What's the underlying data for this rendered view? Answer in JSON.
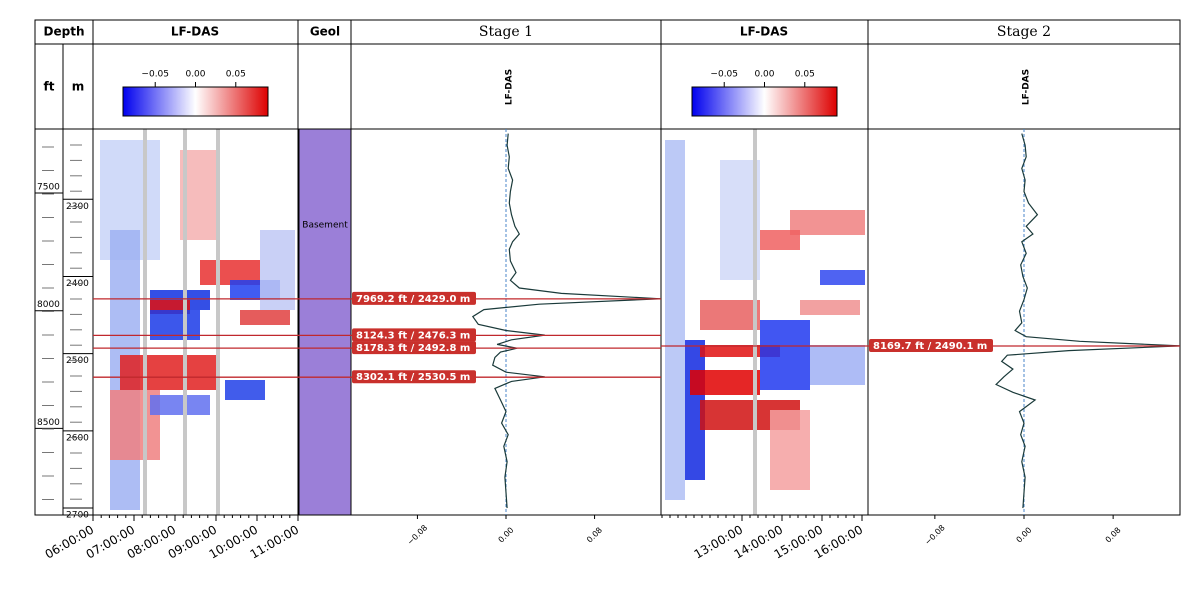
{
  "header": {
    "depth": "Depth",
    "ft": "ft",
    "m": "m",
    "lfdas1": "LF-DAS",
    "geol": "Geol",
    "stage1": "Stage 1",
    "lfdas2": "LF-DAS",
    "stage2": "Stage 2"
  },
  "depth_axes": {
    "ft_lim": [
      7228,
      8868
    ],
    "ft_ticks": [
      7500,
      8000,
      8500
    ],
    "m_lim": [
      2209,
      2709
    ],
    "m_ticks": [
      2300,
      2400,
      2500,
      2600,
      2700
    ]
  },
  "colorbar": {
    "lim": [
      -0.09,
      0.09
    ],
    "ticks": [
      {
        "value": -0.05,
        "label": "−0.05"
      },
      {
        "value": 0,
        "label": "0.00"
      },
      0.05
    ]
  },
  "geol": {
    "label": "Basement"
  },
  "time1": {
    "ticks": [
      "06:00:00",
      "07:00:00",
      "08:00:00",
      "09:00:00",
      "10:00:00",
      "11:00:00"
    ]
  },
  "time2": {
    "ticks": [
      "13:00:00",
      "14:00:00",
      "15:00:00",
      "16:00:00"
    ]
  },
  "stage1": {
    "trace_label": "LF-DAS",
    "xlim": [
      -0.14,
      0.14
    ],
    "xticks": [
      {
        "value": -0.08,
        "label": "−0.08"
      },
      {
        "value": 0,
        "label": "0.00"
      },
      {
        "value": 0.08,
        "label": "0.08"
      }
    ],
    "picks": [
      {
        "label": "7969.2 ft / 2429.0 m",
        "depth_m": 2429.0
      },
      {
        "label": "8124.3 ft / 2476.3 m",
        "depth_m": 2476.3
      },
      {
        "label": "8178.3 ft / 2492.8 m",
        "depth_m": 2492.8
      },
      {
        "label": "8302.1 ft / 2530.5 m",
        "depth_m": 2530.5
      }
    ],
    "trace": {
      "depth_m": [
        2215,
        2230,
        2245,
        2260,
        2275,
        2290,
        2305,
        2320,
        2335,
        2345,
        2355,
        2365,
        2380,
        2395,
        2405,
        2415,
        2422,
        2429,
        2436,
        2443,
        2452,
        2462,
        2470,
        2476,
        2482,
        2488,
        2493,
        2498,
        2505,
        2515,
        2524,
        2530,
        2536,
        2545,
        2560,
        2575,
        2590,
        2605,
        2620,
        2640,
        2660,
        2680,
        2700
      ],
      "values": [
        0.002,
        0.001,
        0.003,
        0.002,
        0.006,
        0.004,
        0.003,
        0.005,
        0.008,
        0.012,
        0.006,
        0.003,
        0.004,
        0.009,
        0.004,
        0.012,
        0.05,
        0.14,
        0.03,
        -0.02,
        -0.03,
        -0.025,
        0.0,
        0.035,
        0.005,
        -0.008,
        0.01,
        -0.005,
        -0.01,
        -0.012,
        0.0,
        0.035,
        0.005,
        -0.01,
        -0.005,
        0.0,
        -0.004,
        0.002,
        -0.002,
        0.001,
        -0.001,
        0.0,
        0.001
      ]
    }
  },
  "stage2": {
    "trace_label": "LF-DAS",
    "xlim": [
      -0.14,
      0.14
    ],
    "xticks": [
      {
        "value": -0.08,
        "label": "−0.08"
      },
      {
        "value": 0,
        "label": "0.00"
      },
      {
        "value": 0.08,
        "label": "0.08"
      }
    ],
    "picks": [
      {
        "label": "8169.7 ft / 2490.1 m",
        "depth_m": 2490.1
      }
    ],
    "trace": {
      "depth_m": [
        2215,
        2230,
        2245,
        2260,
        2275,
        2290,
        2305,
        2320,
        2335,
        2345,
        2355,
        2370,
        2385,
        2400,
        2415,
        2430,
        2445,
        2460,
        2470,
        2478,
        2484,
        2490,
        2496,
        2502,
        2510,
        2520,
        2530,
        2540,
        2550,
        2560,
        2575,
        2590,
        2605,
        2620,
        2640,
        2660,
        2680,
        2700
      ],
      "values": [
        -0.002,
        0.001,
        0.002,
        -0.002,
        0.001,
        0.0,
        0.004,
        0.012,
        0.002,
        0.008,
        -0.002,
        0.002,
        -0.003,
        -0.001,
        0.003,
        0.0,
        -0.004,
        -0.002,
        -0.008,
        0.002,
        0.05,
        0.14,
        0.04,
        -0.015,
        -0.02,
        -0.01,
        -0.018,
        -0.025,
        -0.01,
        0.01,
        -0.004,
        0.0,
        -0.003,
        0.001,
        -0.002,
        0.001,
        0.0,
        -0.001
      ]
    }
  }
}
